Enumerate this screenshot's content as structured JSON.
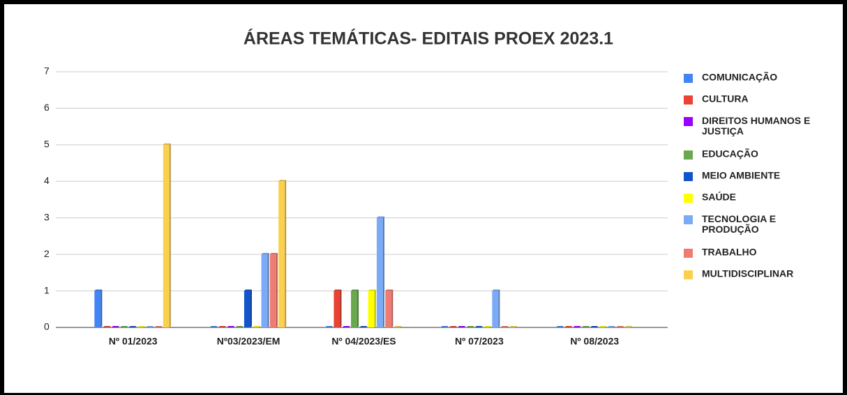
{
  "chart_data": {
    "type": "bar",
    "title": "ÁREAS TEMÁTICAS- EDITAIS PROEX 2023.1",
    "categories": [
      "Nº 01/2023",
      "Nº03/2023/EM",
      "Nº 04/2023/ES",
      "Nº 07/2023",
      "Nº 08/2023"
    ],
    "series": [
      {
        "name": "COMUNICAÇÃO",
        "color": "#4285f4",
        "values": [
          1,
          0,
          0,
          0,
          0
        ]
      },
      {
        "name": "CULTURA",
        "color": "#ea4335",
        "values": [
          0,
          0,
          1,
          0,
          0
        ]
      },
      {
        "name": "DIREITOS HUMANOS E JUSTIÇA",
        "color": "#9900ff",
        "values": [
          0,
          0,
          0,
          0,
          0
        ]
      },
      {
        "name": "EDUCAÇÃO",
        "color": "#6aa84f",
        "values": [
          0,
          0,
          1,
          0,
          0
        ]
      },
      {
        "name": "MEIO AMBIENTE",
        "color": "#1155cc",
        "values": [
          0,
          1,
          0,
          0,
          0
        ]
      },
      {
        "name": "SAÚDE",
        "color": "#ffff00",
        "values": [
          0,
          0,
          1,
          0,
          0
        ]
      },
      {
        "name": "TECNOLOGIA E PRODUÇÃO",
        "color": "#7baaf7",
        "values": [
          0,
          2,
          3,
          1,
          0
        ]
      },
      {
        "name": "TRABALHO",
        "color": "#f07b72",
        "values": [
          0,
          2,
          1,
          0,
          0
        ]
      },
      {
        "name": "MULTIDISCIPLINAR",
        "color": "#fcd04f",
        "values": [
          5,
          4,
          0,
          0,
          0
        ]
      }
    ],
    "ylim": [
      0,
      7
    ],
    "yticks": [
      0,
      1,
      2,
      3,
      4,
      5,
      6,
      7
    ],
    "grid": true,
    "legend": "right"
  }
}
